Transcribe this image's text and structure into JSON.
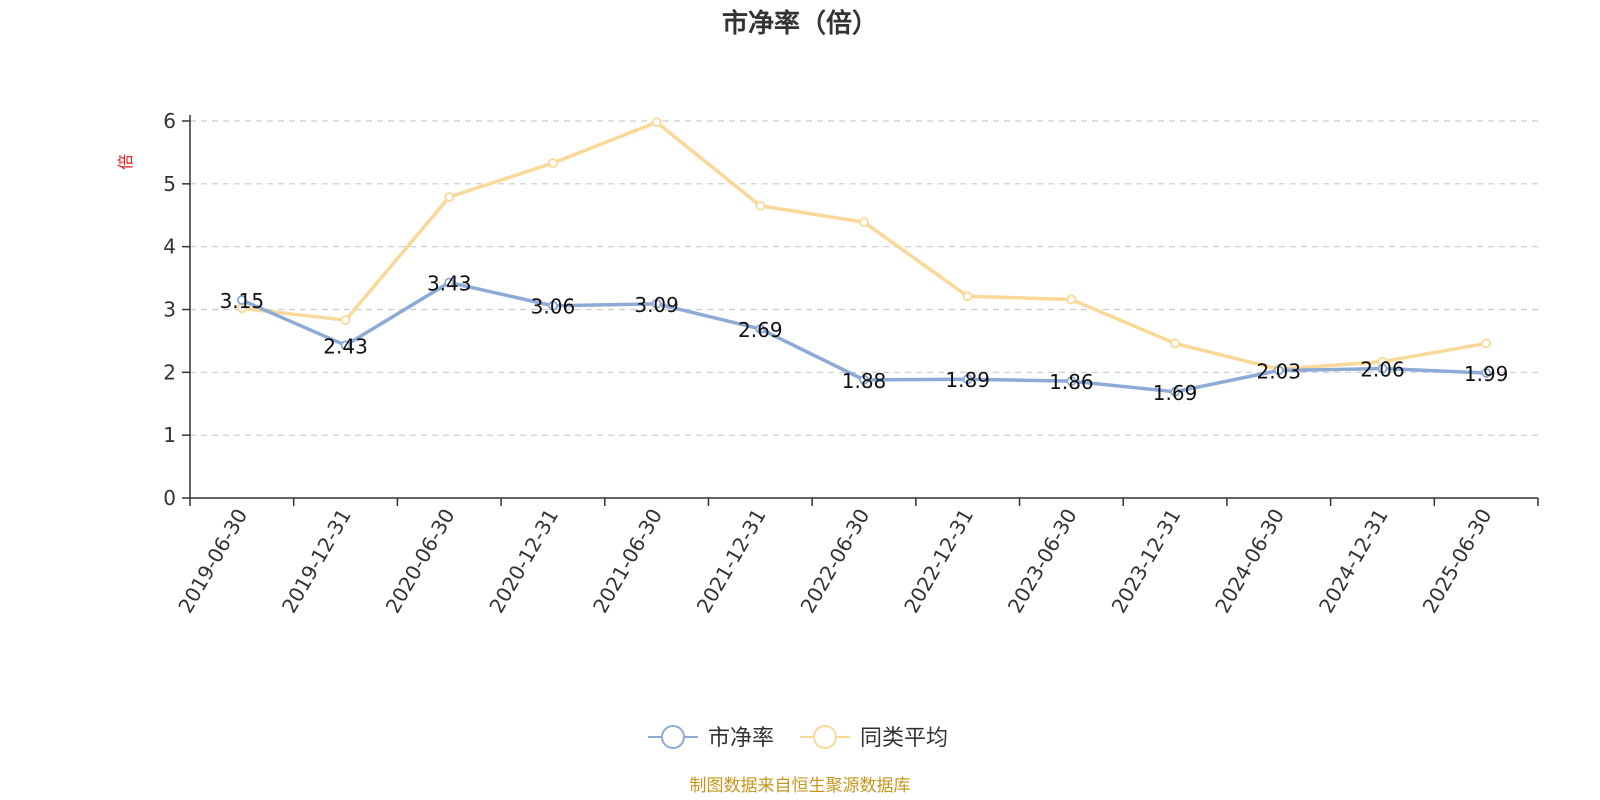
{
  "chart_data": {
    "type": "line",
    "title": "市净率（倍）",
    "ylabel": "倍",
    "ylim": [
      0,
      6
    ],
    "y_ticks": [
      0,
      1,
      2,
      3,
      4,
      5,
      6
    ],
    "grid": true,
    "legend_position": "bottom",
    "x": [
      "2019-06-30",
      "2019-12-31",
      "2020-06-30",
      "2020-12-31",
      "2021-06-30",
      "2021-12-31",
      "2022-06-30",
      "2022-12-31",
      "2023-06-30",
      "2023-12-31",
      "2024-06-30",
      "2024-12-31",
      "2025-06-30"
    ],
    "series": [
      {
        "name": "市净率",
        "color": "#8eaad6",
        "values": [
          3.15,
          2.43,
          3.43,
          3.06,
          3.09,
          2.69,
          1.88,
          1.89,
          1.86,
          1.69,
          2.03,
          2.06,
          1.99
        ],
        "show_labels": true
      },
      {
        "name": "同类平均",
        "color": "#f9d898",
        "values": [
          3.02,
          2.83,
          4.79,
          5.33,
          5.98,
          4.65,
          4.39,
          3.21,
          3.16,
          2.46,
          2.05,
          2.17,
          2.46
        ],
        "show_labels": false
      }
    ],
    "unit_color": "#e02020",
    "source_note": "制图数据来自恒生聚源数据库",
    "source_color": "#c8961e"
  }
}
